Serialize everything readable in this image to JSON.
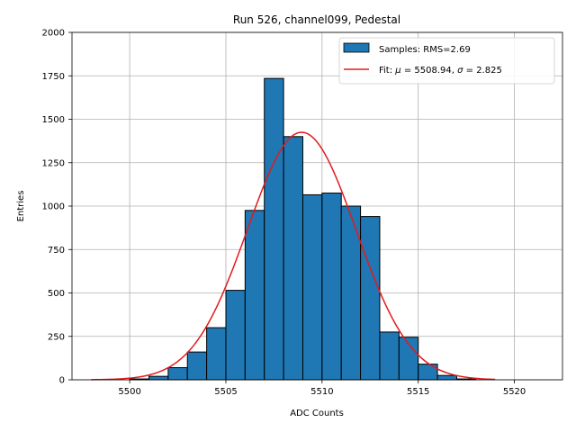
{
  "chart_data": {
    "type": "bar",
    "title": "Run 526, channel099, Pedestal",
    "xlabel": "ADC Counts",
    "ylabel": "Entries",
    "xlim": [
      5497,
      5522.5
    ],
    "ylim": [
      0,
      2000
    ],
    "xticks": [
      5500,
      5505,
      5510,
      5515,
      5520
    ],
    "yticks": [
      0,
      250,
      500,
      750,
      1000,
      1250,
      1500,
      1750,
      2000
    ],
    "grid": true,
    "legend_position": "top-right",
    "colors": {
      "bars": "#1f77b4",
      "fit": "#e31a1c",
      "edge": "#000000"
    },
    "histogram": {
      "name": "Samples: RMS=2.69",
      "bin_edges": [
        5500,
        5501,
        5502,
        5503,
        5504,
        5505,
        5506,
        5507,
        5508,
        5509,
        5510,
        5511,
        5512,
        5513,
        5514,
        5515,
        5516,
        5517,
        5518
      ],
      "counts": [
        5,
        20,
        70,
        160,
        300,
        515,
        975,
        1735,
        1400,
        1065,
        1075,
        1000,
        940,
        275,
        245,
        90,
        25,
        5
      ]
    },
    "fit": {
      "name": "Fit: μ = 5508.94, σ = 2.825",
      "name_mu": "μ",
      "name_sigma": "σ",
      "name_prefix": "Fit: ",
      "name_mid": " = 5508.94, ",
      "name_suffix": " = 2.825",
      "mu": 5508.94,
      "sigma": 2.825,
      "amplitude": 1425,
      "x_range": [
        5498,
        5519
      ]
    }
  }
}
